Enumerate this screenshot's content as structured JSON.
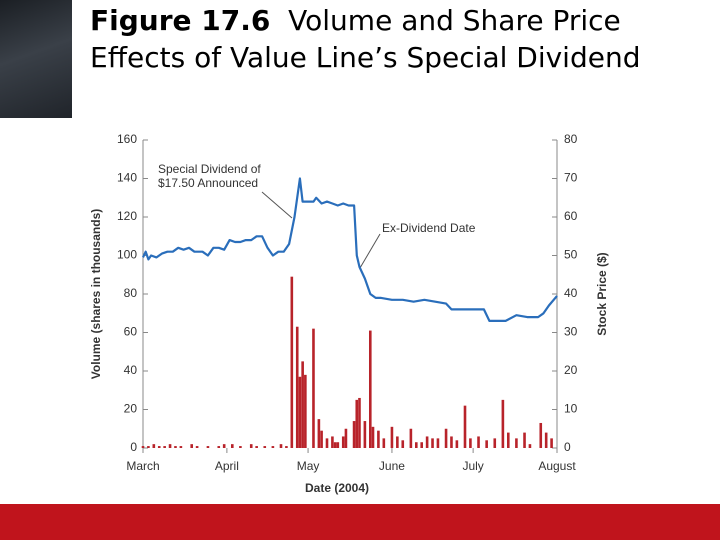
{
  "chart_data": {
    "type": "line-bar",
    "title_label": "Figure 17.6",
    "title": "Volume and Share Price Effects of Value Line’s Special Dividend",
    "xlabel": "Date (2004)",
    "ylabel": "Volume (shares in thousands)",
    "y2label": "Stock Price ($)",
    "xlim": [
      0,
      153
    ],
    "xticks": [
      {
        "value": 0,
        "label": "March"
      },
      {
        "value": 31,
        "label": "April"
      },
      {
        "value": 61,
        "label": "May"
      },
      {
        "value": 92,
        "label": "June"
      },
      {
        "value": 122,
        "label": "July"
      },
      {
        "value": 153,
        "label": "August"
      }
    ],
    "ylim": [
      0,
      160
    ],
    "yticks": [
      0,
      20,
      40,
      60,
      80,
      100,
      120,
      140,
      160
    ],
    "y2lim": [
      0,
      80
    ],
    "y2ticks": [
      0,
      10,
      20,
      30,
      40,
      50,
      60,
      70,
      80
    ],
    "annotations": [
      {
        "lines": [
          "Special Dividend of",
          "$17.50 Announced"
        ]
      },
      {
        "lines": [
          "Ex-Dividend Date"
        ]
      }
    ],
    "series": [
      {
        "name": "Stock Price",
        "kind": "line",
        "axis": "y2",
        "color": "#2a6ebb",
        "x": [
          0,
          1,
          2,
          3,
          5,
          7,
          9,
          11,
          13,
          15,
          17,
          19,
          22,
          24,
          26,
          28,
          30,
          32,
          34,
          36,
          38,
          40,
          42,
          44,
          46,
          48,
          50,
          52,
          54,
          56,
          58,
          59,
          61,
          63,
          64,
          66,
          68,
          70,
          72,
          74,
          76,
          78,
          79,
          80,
          82,
          84,
          86,
          88,
          92,
          96,
          100,
          104,
          108,
          112,
          114,
          120,
          126,
          128,
          134,
          138,
          142,
          146,
          148,
          150,
          153
        ],
        "values": [
          49.5,
          51,
          49,
          50,
          49.5,
          50.5,
          51,
          51,
          52,
          51.5,
          52,
          51,
          51,
          50,
          52,
          52,
          51.5,
          54,
          53.5,
          53.5,
          54,
          54,
          55,
          55,
          52,
          50,
          51,
          51,
          53,
          60,
          70,
          64,
          64,
          64,
          65,
          63.5,
          64,
          63.5,
          63,
          63.5,
          63,
          63,
          50,
          47,
          44,
          40,
          39,
          39,
          38.5,
          38.5,
          38,
          38.5,
          38,
          37.5,
          36,
          36,
          36,
          33,
          33,
          34.5,
          34,
          34,
          35,
          37,
          39.5
        ]
      },
      {
        "name": "Volume",
        "kind": "bar",
        "axis": "y",
        "color": "#b8232a",
        "x": [
          0,
          2,
          4,
          6,
          8,
          10,
          12,
          14,
          18,
          20,
          24,
          28,
          30,
          33,
          36,
          40,
          42,
          45,
          48,
          51,
          53,
          55,
          57,
          58,
          59,
          60,
          63,
          65,
          66,
          68,
          70,
          71,
          72,
          74,
          75,
          78,
          79,
          80,
          82,
          84,
          85,
          87,
          89,
          92,
          94,
          96,
          99,
          101,
          103,
          105,
          107,
          109,
          112,
          114,
          116,
          119,
          121,
          124,
          127,
          130,
          133,
          135,
          138,
          141,
          143,
          147,
          149,
          151
        ],
        "values": [
          1,
          1,
          2,
          1,
          1,
          2,
          1,
          1,
          2,
          1,
          1,
          1,
          2,
          2,
          1,
          2,
          1,
          1,
          1,
          2,
          1,
          89,
          63,
          37,
          45,
          38,
          62,
          15,
          9,
          5,
          6,
          3,
          3,
          6,
          10,
          14,
          25,
          26,
          14,
          61,
          11,
          9,
          5,
          11,
          6,
          4,
          10,
          3,
          3,
          6,
          5,
          5,
          10,
          6,
          4,
          22,
          5,
          6,
          4,
          5,
          25,
          8,
          5,
          8,
          2,
          13,
          8,
          5
        ]
      }
    ]
  }
}
